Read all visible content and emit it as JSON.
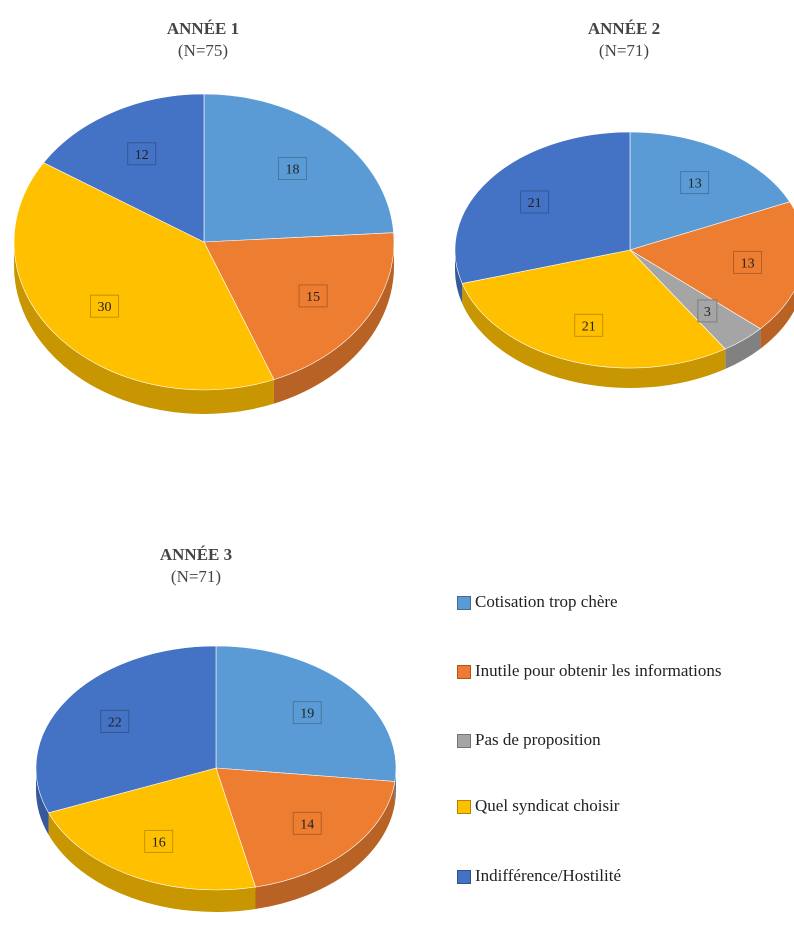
{
  "colors": {
    "Cotisation trop chère": "#5b9bd5",
    "Inutile pour obtenir les informations": "#ed7d31",
    "Pas de proposition": "#a5a5a5",
    "Quel syndicat choisir": "#ffc000",
    "Indifférence/Hostilité": "#4472c4"
  },
  "legend": [
    "Cotisation trop chère",
    "Inutile pour obtenir les informations",
    "Pas de proposition",
    "Quel syndicat choisir",
    "Indifférence/Hostilité"
  ],
  "chart_data": [
    {
      "type": "pie",
      "title": "ANNÉE 1",
      "subtitle": "(N=75)",
      "labels": [
        "Cotisation trop chère",
        "Inutile pour obtenir les informations",
        "Quel syndicat choisir",
        "Indifférence/Hostilité"
      ],
      "values": [
        18,
        15,
        30,
        12
      ]
    },
    {
      "type": "pie",
      "title": "ANNÉE 2",
      "subtitle": "(N=71)",
      "labels": [
        "Cotisation trop chère",
        "Inutile pour obtenir les informations",
        "Pas de proposition",
        "Quel syndicat choisir",
        "Indifférence/Hostilité"
      ],
      "values": [
        13,
        13,
        3,
        21,
        21
      ]
    },
    {
      "type": "pie",
      "title": "ANNÉE 3",
      "subtitle": "(N=71)",
      "labels": [
        "Cotisation trop chère",
        "Inutile pour obtenir les informations",
        "Quel syndicat choisir",
        "Indifférence/Hostilité"
      ],
      "values": [
        19,
        14,
        16,
        22
      ]
    }
  ]
}
